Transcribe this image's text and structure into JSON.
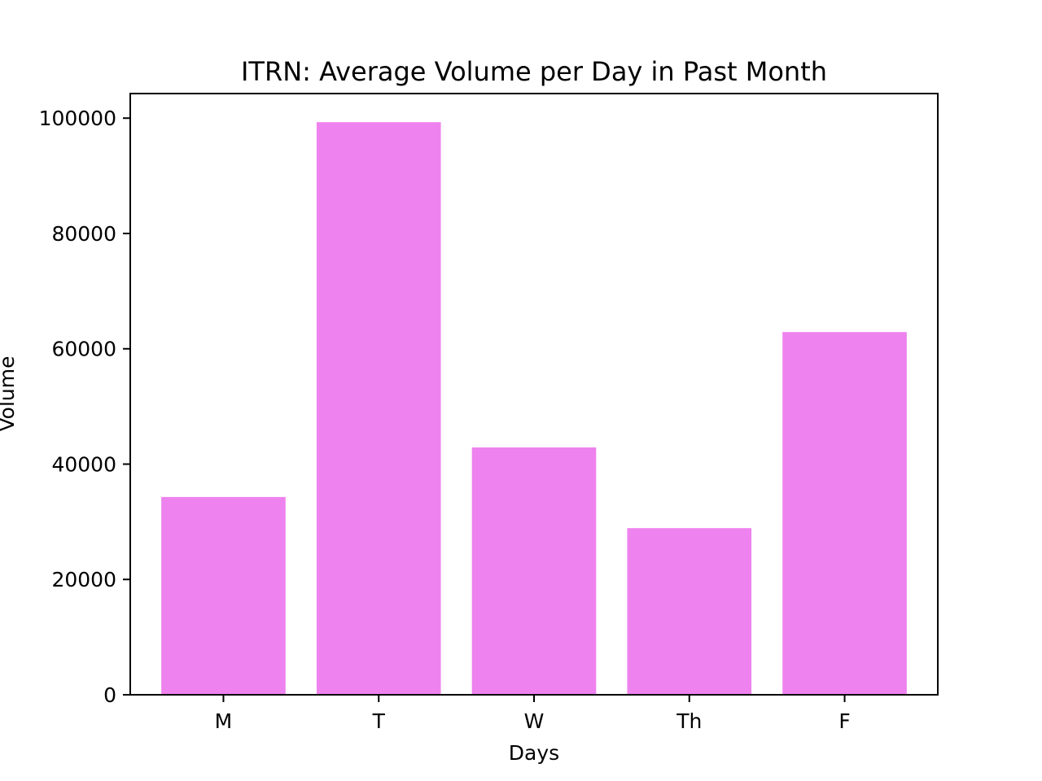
{
  "chart_data": {
    "type": "bar",
    "title": "ITRN: Average Volume per Day in Past Month",
    "xlabel": "Days",
    "ylabel": "Volume",
    "categories": [
      "M",
      "T",
      "W",
      "Th",
      "F"
    ],
    "values": [
      34300,
      99300,
      42900,
      28900,
      62900
    ],
    "ylim": [
      0,
      104265
    ],
    "yticks": [
      0,
      20000,
      40000,
      60000,
      80000,
      100000
    ],
    "ytick_labels": [
      "0",
      "20000",
      "40000",
      "60000",
      "80000",
      "100000"
    ],
    "bar_color": "#ee82ee",
    "grid": false,
    "legend": "none"
  }
}
